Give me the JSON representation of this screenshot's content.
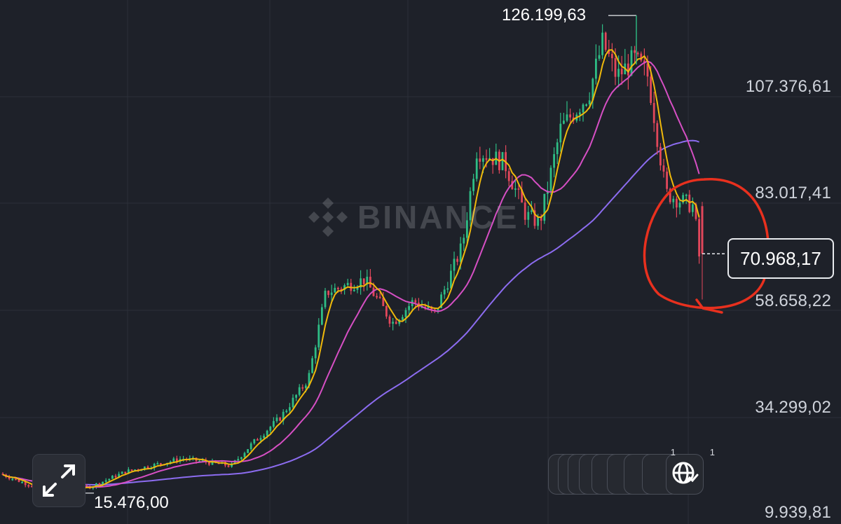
{
  "watermark": "BINANCE",
  "chart_data": {
    "type": "candlestick",
    "yaxis_labels": [
      "107.376,61",
      "83.017,41",
      "58.658,22",
      "34.299,02",
      "9.939,81"
    ],
    "yaxis_values": [
      107376.61,
      83017.41,
      58658.22,
      34299.02,
      9939.81
    ],
    "high_marker": "126.199,63",
    "high_value": 126199.63,
    "low_marker": "15.476,00",
    "low_value": 15476.0,
    "current_price": "70.968,17",
    "current_value": 70968.17,
    "annotation": "red circle around latest drop",
    "moving_averages": [
      "yellow",
      "magenta",
      "purple"
    ],
    "colors": {
      "up": "#2ebd85",
      "down": "#e2475b",
      "ma_fast": "#f0b90b",
      "ma_mid": "#d64fc4",
      "ma_slow": "#8c6cf0",
      "annotation": "#e8301e"
    },
    "grid": true
  },
  "fab_badges": [
    "1",
    "1"
  ]
}
